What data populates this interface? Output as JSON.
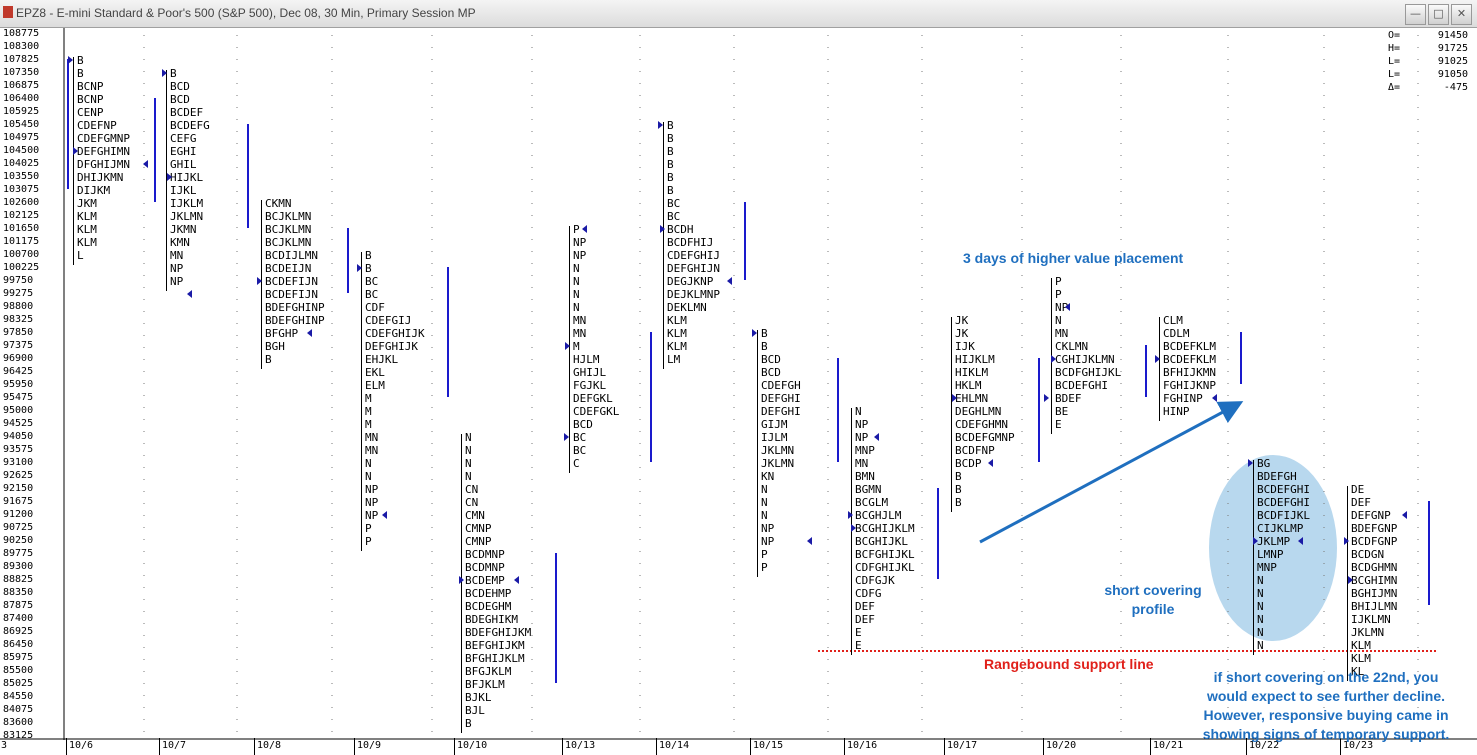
{
  "window": {
    "title": "EPZ8 - E-mini Standard & Poor's 500 (S&P 500), Dec 08, 30 Min, Primary Session MP",
    "minimize": "—",
    "maximize": "□",
    "close": "✕"
  },
  "ohlc": [
    {
      "k": "O=",
      "v": "91450"
    },
    {
      "k": "H=",
      "v": "91725"
    },
    {
      "k": "L=",
      "v": "91025"
    },
    {
      "k": "L=",
      "v": "91050"
    },
    {
      "k": "Δ=",
      "v": "-475"
    }
  ],
  "price_levels": [
    "108775",
    "108300",
    "107825",
    "107350",
    "106875",
    "106400",
    "105925",
    "105450",
    "104975",
    "104500",
    "104025",
    "103550",
    "103075",
    "102600",
    "102125",
    "101650",
    "101175",
    "100700",
    "100225",
    "99750",
    "99275",
    "98800",
    "98325",
    "97850",
    "97375",
    "96900",
    "96425",
    "95950",
    "95475",
    "95000",
    "94525",
    "94050",
    "93575",
    "93100",
    "92625",
    "92150",
    "91675",
    "91200",
    "90725",
    "90250",
    "89775",
    "89300",
    "88825",
    "88350",
    "87875",
    "87400",
    "86925",
    "86450",
    "85975",
    "85500",
    "85025",
    "84550",
    "84075",
    "83600",
    "83125"
  ],
  "dates": [
    "10/6",
    "10/7",
    "10/8",
    "10/9",
    "10/10",
    "10/13",
    "10/14",
    "10/15",
    "10/16",
    "10/17",
    "10/20",
    "10/21",
    "10/22",
    "10/23"
  ],
  "profiles": [
    {
      "date": "10/6",
      "start": 2,
      "rows": [
        "B",
        "B",
        "BCNP",
        "BCNP",
        "CENP",
        "CDEFNP",
        "CDEFGMNP",
        "DEFGHIMN",
        "DFGHIJMN",
        "DHIJKMN",
        "DIJKM",
        "JKM",
        "KLM",
        "KLM",
        "KLM",
        "L"
      ]
    },
    {
      "date": "10/7",
      "start": 3,
      "rows": [
        "B",
        "BCD",
        "BCD",
        "BCDEF",
        "BCDEFG",
        "CEFG",
        "EGHI",
        "GHIL",
        "HIJKL",
        "IJKL",
        "IJKLM",
        "JKLMN",
        "JKMN",
        "KMN",
        "MN",
        "NP",
        "NP"
      ]
    },
    {
      "date": "10/8",
      "start": 13,
      "rows": [
        "CKMN",
        "BCJKLMN",
        "BCJKLMN",
        "BCJKLMN",
        "BCDIJLMN",
        "BCDEIJN",
        "BCDEFIJN",
        "BCDEFIJN",
        "BDEFGHINP",
        "BDEFGHINP",
        "BFGHP",
        "BGH",
        "B"
      ]
    },
    {
      "date": "10/9",
      "start": 17,
      "rows": [
        "B",
        "B",
        "BC",
        "BC",
        "CDF",
        "CDEFGIJ",
        "CDEFGHIJK",
        "DEFGHIJK",
        "EHJKL",
        "EKL",
        "ELM",
        "M",
        "M",
        "M",
        "MN",
        "MN",
        "N",
        "N",
        "NP",
        "NP",
        "NP",
        "P",
        "P"
      ]
    },
    {
      "date": "10/10",
      "start": 31,
      "rows": [
        "N",
        "N",
        "N",
        "N",
        "CN",
        "CN",
        "CMN",
        "CMNP",
        "CMNP",
        "BCDMNP",
        "BCDMNP",
        "BCDEMP",
        "BCDEHMP",
        "BCDEGHM",
        "BDEGHIKM",
        "BDEFGHIJKM",
        "BEFGHIJKM",
        "BFGHIJKLM",
        "BFGJKLM",
        "BFJKLM",
        "BJKL",
        "BJL",
        "B"
      ]
    },
    {
      "date": "10/13",
      "start": 15,
      "rows": [
        "P",
        "NP",
        "NP",
        "N",
        "N",
        "N",
        "N",
        "MN",
        "MN",
        "M",
        "HJLM",
        "GHIJL",
        "FGJKL",
        "DEFGKL",
        "CDEFGKL",
        "BCD",
        "BC",
        "BC",
        "C"
      ]
    },
    {
      "date": "10/14",
      "start": 7,
      "rows": [
        "B",
        "B",
        "B",
        "B",
        "B",
        "B",
        "BC",
        "BC",
        "BCDH",
        "BCDFHIJ",
        "CDEFGHIJ",
        "DEFGHIJN",
        "DEGJKNP",
        "DEJKLMNP",
        "DEKLMN",
        "KLM",
        "KLM",
        "KLM",
        "LM"
      ]
    },
    {
      "date": "10/15",
      "start": 23,
      "rows": [
        "B",
        "B",
        "BCD",
        "BCD",
        "CDEFGH",
        "DEFGHI",
        "DEFGHI",
        "GIJM",
        "IJLM",
        "JKLMN",
        "JKLMN",
        "KN",
        "N",
        "N",
        "N",
        "NP",
        "NP",
        "P",
        "P"
      ]
    },
    {
      "date": "10/16",
      "start": 29,
      "rows": [
        "N",
        "NP",
        "NP",
        "MNP",
        "MN",
        "BMN",
        "BGMN",
        "BCGLM",
        "BCGHJLM",
        "BCGHIJKLM",
        "BCGHIJKL",
        "BCFGHIJKL",
        "CDFGHIJKL",
        "CDFGJK",
        "CDFG",
        "DEF",
        "DEF",
        "E",
        "E"
      ]
    },
    {
      "date": "10/17",
      "start": 22,
      "rows": [
        "JK",
        "JK",
        "IJK",
        "HIJKLM",
        "HIKLM",
        "HKLM",
        "EHLMN",
        "DEGHLMN",
        "CDEFGHMN",
        "BCDEFGMNP",
        "BCDFNP",
        "BCDP",
        "B",
        "B",
        "B"
      ]
    },
    {
      "date": "10/20",
      "start": 19,
      "rows": [
        "P",
        "P",
        "NP",
        "N",
        "MN",
        "CKLMN",
        "CGHIJKLMN",
        "BCDFGHIJKL",
        "BCDEFGHI",
        "BDEF",
        "BE",
        "E"
      ]
    },
    {
      "date": "10/21",
      "start": 22,
      "rows": [
        "CLM",
        "CDLM",
        "BCDEFKLM",
        "BCDEFKLM",
        "BFHIJKMN",
        "FGHIJKNP",
        "FGHINP",
        "HINP"
      ]
    },
    {
      "date": "10/22",
      "start": 33,
      "rows": [
        "BG",
        "BDEFGH",
        "BCDEFGHI",
        "BCDEFGHI",
        "BCDFIJKL",
        "CIJKLMP",
        "JKLMP",
        "LMNP",
        "MNP",
        "N",
        "N",
        "N",
        "N",
        "N",
        "N"
      ]
    },
    {
      "date": "10/23",
      "start": 35,
      "rows": [
        "DE",
        "DEF",
        "DEFGNP",
        "BDEFGNP",
        "BCDFGNP",
        "BCDGN",
        "BCDGHMN",
        "BCGHIMN",
        "BGHIJMN",
        "BHIJLMN",
        "IJKLMN",
        "JKLMN",
        "KLM",
        "KLM",
        "KL"
      ]
    }
  ],
  "annotations": {
    "higher_value": "3 days of higher value placement",
    "short_covering_1": "short covering",
    "short_covering_2": "profile",
    "rangebound": "Rangebound support line",
    "note_1": "if short covering on the 22nd, you",
    "note_2": "would expect to see further decline.",
    "note_3": "However, responsive buying came in",
    "note_4": "showing signs of temporary support."
  },
  "colors": {
    "accent": "#1f6fbf",
    "support_line": "#e0201a",
    "ellipse": "#b8d8ee",
    "value_bar": "#1a1acc",
    "marker": "#1a1aa6"
  },
  "axis_first_label": "3"
}
